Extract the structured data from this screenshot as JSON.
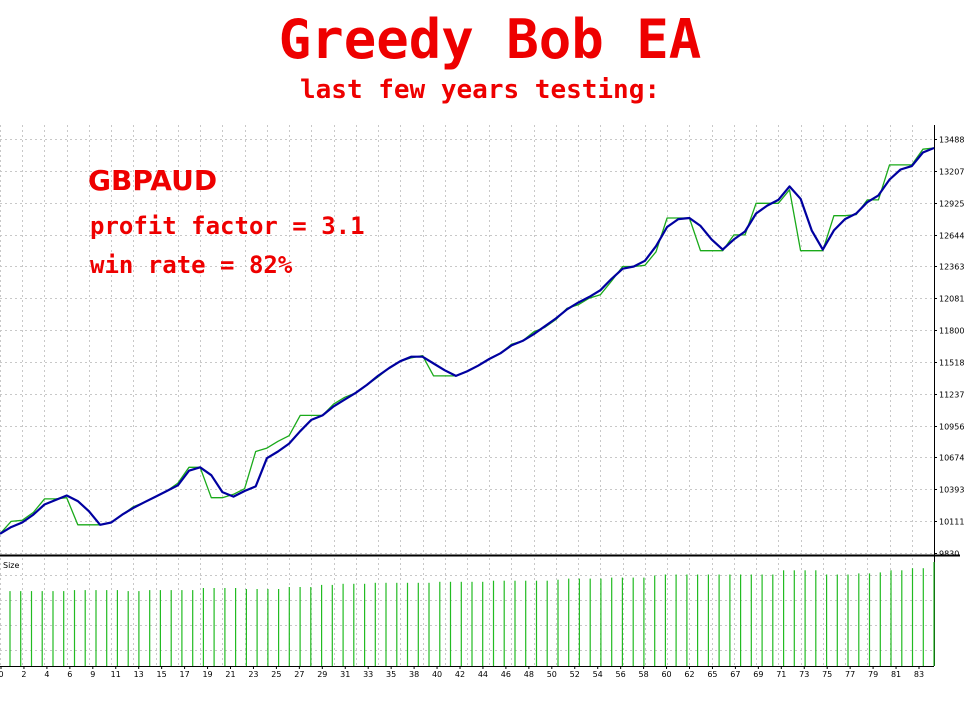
{
  "header": {
    "title": "Greedy Bob EA",
    "subtitle": "last few years testing:"
  },
  "annotation": {
    "pair": "GBPAUD",
    "profit_factor": "profit factor = 3.1",
    "win_rate": "win rate = 82%"
  },
  "colors": {
    "text_accent": "#ee0000",
    "balance_line": "#1aaa1a",
    "equity_line": "#0000a0",
    "grid": "#c8c8c8",
    "volume_bars": "#22bb22"
  },
  "chart_data": [
    {
      "type": "line",
      "title": "",
      "x": [
        0,
        1,
        2,
        3,
        4,
        5,
        6,
        7,
        8,
        9,
        10,
        11,
        12,
        13,
        14,
        15,
        16,
        17,
        18,
        19,
        20,
        21,
        22,
        23,
        24,
        25,
        26,
        27,
        28,
        29,
        30,
        31,
        32,
        33,
        34,
        35,
        36,
        37,
        38,
        39,
        40,
        41,
        42,
        43,
        44,
        45,
        46,
        47,
        48,
        49,
        50,
        51,
        52,
        53,
        54,
        55,
        56,
        57,
        58,
        59,
        60,
        61,
        62,
        63,
        64,
        65,
        66,
        67,
        68,
        69,
        70,
        71,
        72,
        73,
        74,
        75,
        76,
        77,
        78,
        79,
        80,
        81,
        82,
        83,
        84
      ],
      "series": [
        {
          "name": "",
          "values": [
            10000,
            10110,
            10120,
            10190,
            10310,
            10310,
            10320,
            10080,
            10080,
            10080,
            10100,
            10170,
            10240,
            10280,
            10330,
            10380,
            10450,
            10590,
            10590,
            10320,
            10320,
            10350,
            10400,
            10730,
            10760,
            10820,
            10870,
            11050,
            11050,
            11050,
            11150,
            11210,
            11250,
            11320,
            11390,
            11470,
            11530,
            11560,
            11580,
            11400,
            11400,
            11400,
            11440,
            11490,
            11550,
            11600,
            11680,
            11710,
            11790,
            11830,
            11900,
            12000,
            12030,
            12090,
            12120,
            12240,
            12370,
            12370,
            12380,
            12500,
            12800,
            12800,
            12800,
            12510,
            12510,
            12510,
            12650,
            12650,
            12930,
            12930,
            12930,
            13050,
            12510,
            12510,
            12510,
            12820,
            12820,
            12830,
            12960,
            12960,
            13270,
            13270,
            13270,
            13410,
            13420
          ]
        },
        {
          "name": "",
          "values": [
            10000,
            10060,
            10100,
            10170,
            10260,
            10300,
            10340,
            10290,
            10200,
            10080,
            10100,
            10170,
            10230,
            10280,
            10330,
            10380,
            10430,
            10560,
            10590,
            10520,
            10370,
            10330,
            10380,
            10420,
            10670,
            10730,
            10800,
            10910,
            11010,
            11050,
            11130,
            11190,
            11250,
            11320,
            11400,
            11470,
            11530,
            11570,
            11570,
            11510,
            11450,
            11400,
            11440,
            11490,
            11550,
            11600,
            11670,
            11710,
            11770,
            11840,
            11910,
            11990,
            12050,
            12100,
            12160,
            12260,
            12350,
            12370,
            12420,
            12550,
            12720,
            12790,
            12800,
            12730,
            12610,
            12520,
            12610,
            12680,
            12840,
            12910,
            12960,
            13080,
            12970,
            12690,
            12520,
            12690,
            12790,
            12840,
            12940,
            13000,
            13140,
            13230,
            13260,
            13380,
            13420
          ]
        }
      ],
      "ylim": [
        9830,
        13500
      ],
      "y_ticks": [
        "13488",
        "13207",
        "12925",
        "12644",
        "12363",
        "12081",
        "11800",
        "11518",
        "11237",
        "10956",
        "10674",
        "10393",
        "10111",
        "9830"
      ],
      "grid": true
    },
    {
      "type": "bar",
      "ylabel": "Size",
      "x_ticks": [
        "0",
        "2",
        "4",
        "6",
        "9",
        "11",
        "13",
        "15",
        "17",
        "19",
        "21",
        "23",
        "25",
        "27",
        "29",
        "31",
        "33",
        "35",
        "38",
        "40",
        "42",
        "44",
        "46",
        "48",
        "50",
        "52",
        "54",
        "56",
        "58",
        "60",
        "62",
        "65",
        "67",
        "69",
        "71",
        "73",
        "75",
        "77",
        "79",
        "81",
        "83"
      ],
      "values": [
        0.72,
        0.72,
        0.72,
        0.72,
        0.72,
        0.72,
        0.73,
        0.73,
        0.73,
        0.73,
        0.73,
        0.72,
        0.72,
        0.73,
        0.73,
        0.73,
        0.73,
        0.73,
        0.75,
        0.75,
        0.75,
        0.75,
        0.74,
        0.74,
        0.74,
        0.74,
        0.76,
        0.76,
        0.76,
        0.78,
        0.78,
        0.79,
        0.79,
        0.79,
        0.8,
        0.8,
        0.8,
        0.8,
        0.8,
        0.8,
        0.81,
        0.81,
        0.81,
        0.81,
        0.81,
        0.82,
        0.82,
        0.82,
        0.82,
        0.82,
        0.82,
        0.83,
        0.84,
        0.84,
        0.84,
        0.84,
        0.85,
        0.85,
        0.85,
        0.85,
        0.87,
        0.88,
        0.88,
        0.88,
        0.88,
        0.88,
        0.88,
        0.88,
        0.88,
        0.88,
        0.88,
        0.88,
        0.92,
        0.92,
        0.92,
        0.92,
        0.88,
        0.88,
        0.88,
        0.89,
        0.89,
        0.9,
        0.92,
        0.92,
        0.94,
        0.94,
        1.0
      ]
    }
  ]
}
